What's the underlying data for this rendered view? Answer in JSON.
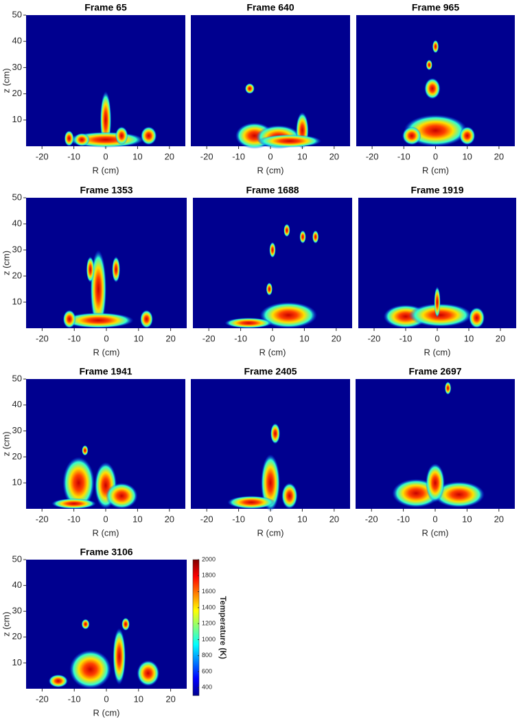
{
  "chart_data": [
    {
      "type": "heatmap",
      "title": "Frame 65",
      "xlabel": "R (cm)",
      "ylabel": "z (cm)",
      "xlim": [
        -25,
        25
      ],
      "ylim": [
        0,
        50
      ],
      "xticks": [
        -20,
        -10,
        0,
        10,
        20
      ],
      "yticks": [
        10,
        20,
        30,
        40,
        50
      ]
    },
    {
      "type": "heatmap",
      "title": "Frame 640",
      "xlabel": "R (cm)",
      "xlim": [
        -25,
        25
      ],
      "ylim": [
        0,
        50
      ],
      "xticks": [
        -20,
        -10,
        0,
        10,
        20
      ]
    },
    {
      "type": "heatmap",
      "title": "Frame 965",
      "xlabel": "R (cm)",
      "xlim": [
        -25,
        25
      ],
      "ylim": [
        0,
        50
      ],
      "xticks": [
        -20,
        -10,
        0,
        10,
        20
      ]
    },
    {
      "type": "heatmap",
      "title": "Frame 1353",
      "xlabel": "R (cm)",
      "ylabel": "z (cm)",
      "xlim": [
        -25,
        25
      ],
      "ylim": [
        0,
        50
      ],
      "xticks": [
        -20,
        -10,
        0,
        10,
        20
      ],
      "yticks": [
        10,
        20,
        30,
        40,
        50
      ]
    },
    {
      "type": "heatmap",
      "title": "Frame 1688",
      "xlabel": "R (cm)",
      "xlim": [
        -25,
        25
      ],
      "ylim": [
        0,
        50
      ],
      "xticks": [
        -20,
        -10,
        0,
        10,
        20
      ]
    },
    {
      "type": "heatmap",
      "title": "Frame 1919",
      "xlabel": "R (cm)",
      "xlim": [
        -25,
        25
      ],
      "ylim": [
        0,
        50
      ],
      "xticks": [
        -20,
        -10,
        0,
        10,
        20
      ]
    },
    {
      "type": "heatmap",
      "title": "Frame 1941",
      "xlabel": "R (cm)",
      "ylabel": "z (cm)",
      "xlim": [
        -25,
        25
      ],
      "ylim": [
        0,
        50
      ],
      "xticks": [
        -20,
        -10,
        0,
        10,
        20
      ],
      "yticks": [
        10,
        20,
        30,
        40,
        50
      ]
    },
    {
      "type": "heatmap",
      "title": "Frame 2405",
      "xlabel": "R (cm)",
      "xlim": [
        -25,
        25
      ],
      "ylim": [
        0,
        50
      ],
      "xticks": [
        -20,
        -10,
        0,
        10,
        20
      ]
    },
    {
      "type": "heatmap",
      "title": "Frame 2697",
      "xlabel": "R (cm)",
      "xlim": [
        -25,
        25
      ],
      "ylim": [
        0,
        50
      ],
      "xticks": [
        -20,
        -10,
        0,
        10,
        20
      ]
    },
    {
      "type": "heatmap",
      "title": "Frame 3106",
      "xlabel": "R (cm)",
      "ylabel": "z (cm)",
      "xlim": [
        -25,
        25
      ],
      "ylim": [
        0,
        50
      ],
      "xticks": [
        -20,
        -10,
        0,
        10,
        20
      ],
      "yticks": [
        10,
        20,
        30,
        40,
        50
      ],
      "colorbar": {
        "label": "Temperature (K)",
        "lim": [
          300,
          2000
        ],
        "ticks": [
          400,
          600,
          800,
          1000,
          1200,
          1400,
          1600,
          1800,
          2000
        ],
        "colormap": "jet"
      }
    }
  ]
}
